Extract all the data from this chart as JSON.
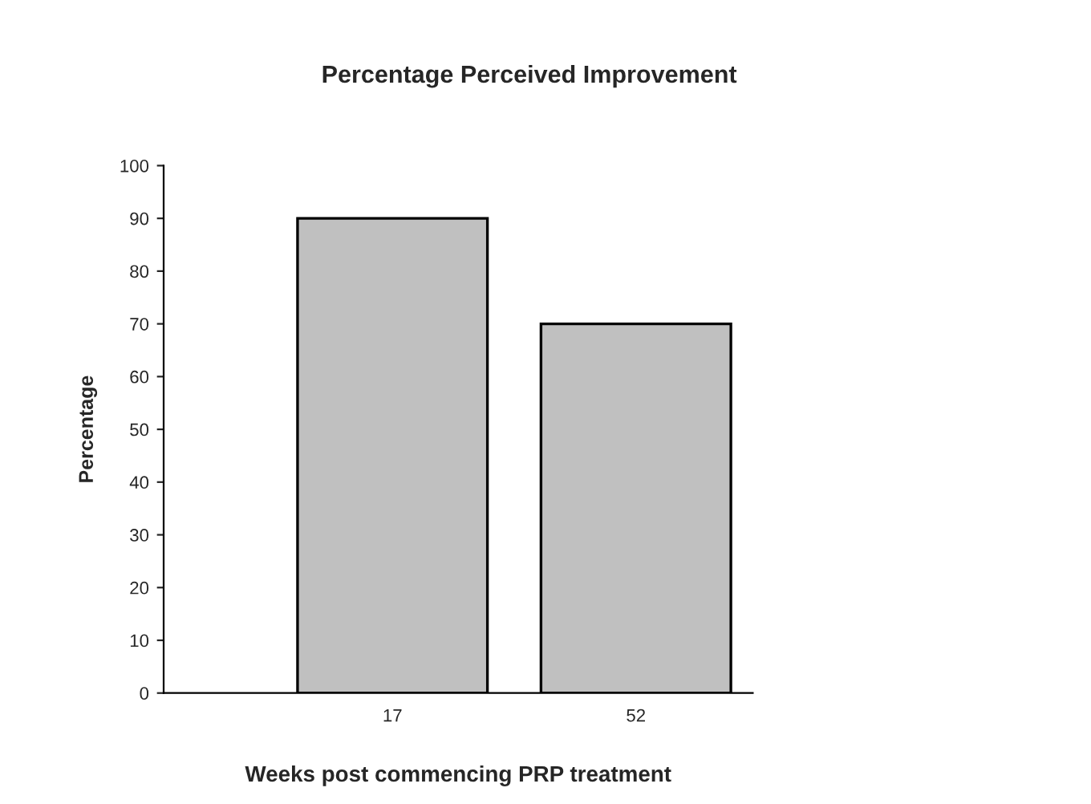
{
  "chart_data": {
    "type": "bar",
    "title": "Percentage Perceived Improvement",
    "xlabel": "Weeks post commencing PRP treatment",
    "ylabel": "Percentage",
    "categories": [
      "17",
      "52"
    ],
    "values": [
      90,
      70
    ],
    "color": "#c0c0c0",
    "ylim": [
      0,
      100
    ],
    "yticks": [
      0,
      10,
      20,
      30,
      40,
      50,
      60,
      70,
      80,
      90,
      100
    ],
    "grid": false,
    "legend": false
  }
}
